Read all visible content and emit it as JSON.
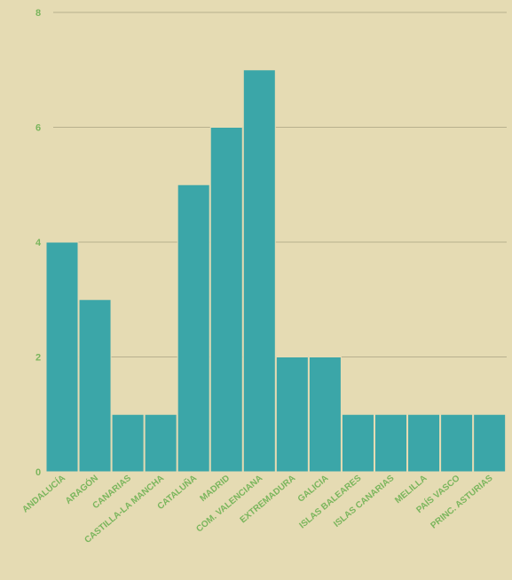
{
  "chart_data": {
    "type": "bar",
    "title": "",
    "xlabel": "",
    "ylabel": "",
    "categories": [
      "ANDALUCÍA",
      "ARAGÓN",
      "CANARIAS",
      "CASTILLA-LA MANCHA",
      "CATALUÑA",
      "MADRID",
      "COM. VALENCIANA",
      "EXTREMADURA",
      "GALICIA",
      "ISLAS BALEARES",
      "ISLAS CANARIAS",
      "MELILLA",
      "PAÍS VASCO",
      "PRINC. ASTURIAS"
    ],
    "values": [
      4,
      3,
      1,
      1,
      5,
      6,
      7,
      2,
      2,
      1,
      1,
      1,
      1,
      1
    ],
    "ylim": [
      0,
      8
    ],
    "yticks": [
      0,
      2,
      4,
      6,
      8
    ],
    "grid": true,
    "colors": {
      "bar": "#3ba6a8",
      "background": "#e5dbb3",
      "grid": "#b8b08e",
      "text": "#7ab55c"
    }
  }
}
